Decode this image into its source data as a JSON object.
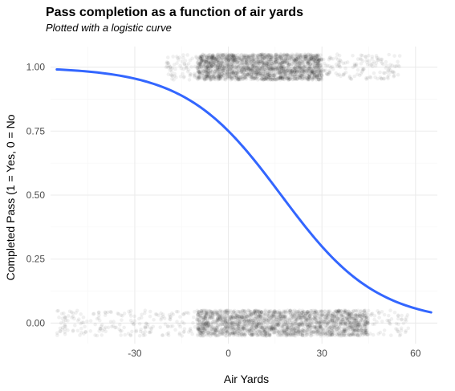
{
  "chart_data": {
    "type": "scatter",
    "title": "Pass completion as a function of air yards",
    "subtitle": "Plotted with a logistic curve",
    "xlabel": "Air Yards",
    "ylabel": "Completed Pass (1 = Yes, 0 = No",
    "xlim": [
      -57,
      67
    ],
    "ylim": [
      -0.08,
      1.08
    ],
    "x_ticks": [
      -30,
      0,
      30,
      60
    ],
    "y_ticks": [
      0.0,
      0.25,
      0.5,
      0.75,
      1.0
    ],
    "x_tick_labels": [
      "-30",
      "0",
      "30",
      "60"
    ],
    "y_tick_labels": [
      "0.00",
      "0.25",
      "0.50",
      "0.75",
      "1.00"
    ],
    "grid": true,
    "legend": "none",
    "points": {
      "color": "#000000",
      "alpha": 0.06,
      "jitter_height": 0.05,
      "completed_x_range": [
        -20,
        55
      ],
      "incomplete_x_range": [
        -55,
        58
      ],
      "dense_completed_x_range": [
        -10,
        30
      ],
      "dense_incomplete_x_range": [
        -10,
        45
      ]
    },
    "curve": {
      "type": "logistic",
      "color": "#3366ff",
      "intercept": 1.1,
      "slope": -0.065,
      "x_range": [
        -55,
        65
      ]
    },
    "colors": {
      "curve": "#3366ff",
      "points": "#000000",
      "grid": "#ebebeb"
    }
  }
}
